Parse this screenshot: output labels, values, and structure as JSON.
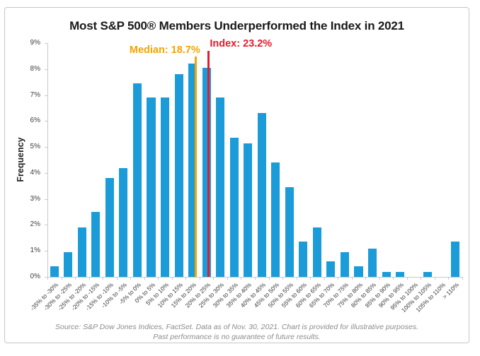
{
  "chart_data": {
    "type": "bar",
    "title": "Most S&P 500® Members Underperformed the Index in 2021",
    "xlabel": "",
    "ylabel": "Frequency",
    "categories": [
      "-35% to -30%",
      "-30% to -25%",
      "-25% to -20%",
      "-20% to -15%",
      "-15% to -10%",
      "-10% to -5%",
      "-5% to 0%",
      "0% to 5%",
      "5% to 10%",
      "10% to 15%",
      "15% to 20%",
      "20% to 25%",
      "25% to 30%",
      "30% to 35%",
      "35% to 40%",
      "40% to 45%",
      "45% to 50%",
      "50% to 55%",
      "55% to 60%",
      "60% to 65%",
      "65% to 70%",
      "70% to 75%",
      "75% to 80%",
      "80% to 85%",
      "85% to 90%",
      "90% to 95%",
      "95% to 100%",
      "100% to 105%",
      "105% to 110%",
      "> 110%"
    ],
    "values": [
      0.4,
      0.95,
      1.9,
      2.5,
      3.8,
      4.2,
      7.45,
      6.9,
      6.9,
      7.8,
      8.2,
      8.05,
      6.9,
      5.35,
      5.15,
      6.3,
      4.4,
      3.45,
      1.35,
      1.9,
      0.6,
      0.95,
      0.4,
      1.1,
      0.2,
      0.2,
      0,
      0.2,
      0,
      1.35
    ],
    "ylim": [
      0,
      9
    ],
    "y_tick_labels": [
      "0%",
      "1%",
      "2%",
      "3%",
      "4%",
      "5%",
      "6%",
      "7%",
      "8%",
      "9%"
    ],
    "x_range": [
      -35,
      115
    ],
    "grid": false,
    "legend": false,
    "bar_color": "#1B9CD9",
    "axis_color": "#C9C9C9",
    "annotations": [
      {
        "name": "median-line",
        "label": "Median: 18.7%",
        "value": 18.7,
        "color": "#F5A300"
      },
      {
        "name": "index-line",
        "label": "Index: 23.2%",
        "value": 23.2,
        "color": "#E8192E"
      }
    ]
  },
  "footer": {
    "line1": "Source: S&P Dow Jones Indices, FactSet. Data as of Nov. 30, 2021. Chart is provided for illustrative purposes.",
    "line2": "Past performance is no guarantee of future results."
  }
}
